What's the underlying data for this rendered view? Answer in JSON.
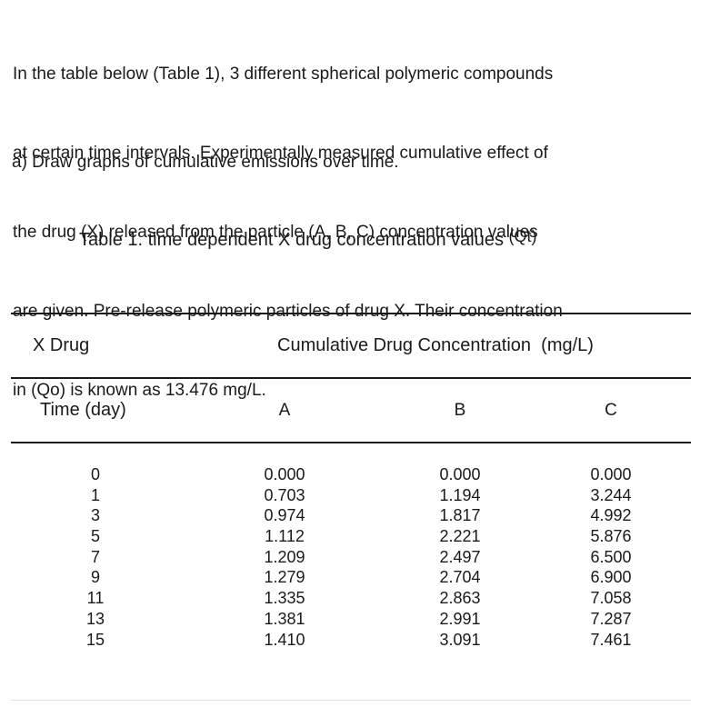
{
  "document": {
    "intro_lines": [
      "In the table below (Table 1), 3 different spherical polymeric compounds",
      "at certain time intervals. Experimentally measured cumulative effect of",
      "the drug (X) released from the particle (A, B, C) concentration values",
      "are given. Pre-release polymeric particles of drug X. Their concentration",
      "in (Qo) is known as 13.476 mg/L."
    ],
    "question": "a) Draw graphs of cumulative emissions over time.",
    "table": {
      "title": "Table 1. time dependent X drug concentration values",
      "title_suffix": "(Qt)",
      "group_header": {
        "drug_label": "X Drug",
        "concentration_label": "Cumulative Drug Concentration  (mg/L)"
      },
      "column_headers": [
        "Time (day)",
        "A",
        "B",
        "C"
      ],
      "rows": [
        [
          "0",
          "0.000",
          "0.000",
          "0.000"
        ],
        [
          "1",
          "0.703",
          "1.194",
          "3.244"
        ],
        [
          "3",
          "0.974",
          "1.817",
          "4.992"
        ],
        [
          "5",
          "1.112",
          "2.221",
          "5.876"
        ],
        [
          "7",
          "1.209",
          "2.497",
          "6.500"
        ],
        [
          "9",
          "1.279",
          "2.704",
          "6.900"
        ],
        [
          "11",
          "1.335",
          "2.863",
          "7.058"
        ],
        [
          "13",
          "1.381",
          "2.991",
          "7.287"
        ],
        [
          "15",
          "1.410",
          "3.091",
          "7.461"
        ]
      ]
    },
    "colors": {
      "text": "#1a1a1a",
      "rule": "#1a1a1a"
    }
  }
}
